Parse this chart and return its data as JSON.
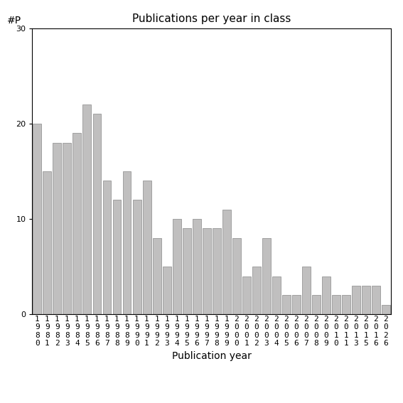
{
  "years": [
    "1980",
    "1981",
    "1982",
    "1983",
    "1984",
    "1985",
    "1986",
    "1987",
    "1988",
    "1989",
    "1990",
    "1991",
    "1992",
    "1993",
    "1994",
    "1995",
    "1996",
    "1997",
    "1998",
    "1999",
    "2000",
    "2001",
    "2002",
    "2003",
    "2004",
    "2005",
    "2006",
    "2007",
    "2008",
    "2009",
    "2010",
    "2011",
    "2013",
    "2015",
    "2016",
    "2026"
  ],
  "values": [
    20,
    15,
    18,
    18,
    19,
    22,
    21,
    14,
    12,
    15,
    12,
    14,
    8,
    5,
    10,
    9,
    10,
    9,
    9,
    11,
    8,
    4,
    5,
    8,
    4,
    2,
    2,
    5,
    2,
    4,
    2,
    2,
    3,
    3,
    3,
    1
  ],
  "bar_color": "#c0bfbf",
  "bar_edgecolor": "#888888",
  "title": "Publications per year in class",
  "xlabel": "Publication year",
  "ylabel": "#P",
  "ylim": [
    0,
    30
  ],
  "yticks": [
    0,
    10,
    20,
    30
  ],
  "background_color": "#ffffff",
  "title_fontsize": 11,
  "label_fontsize": 10,
  "tick_fontsize": 8
}
